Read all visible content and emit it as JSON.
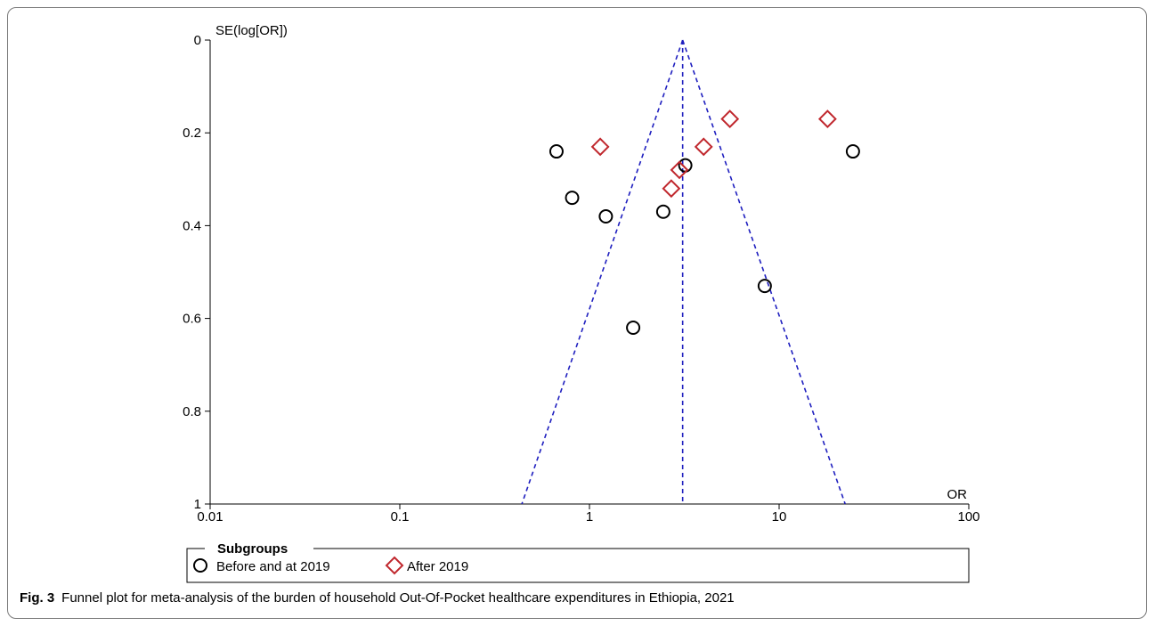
{
  "caption": {
    "label": "Fig. 3",
    "text": "Funnel plot for meta-analysis of the burden of household Out-Of-Pocket healthcare expenditures in Ethiopia, 2021"
  },
  "colors": {
    "funnel": "#1f1fbf",
    "before": "#000000",
    "after": "#c0272d"
  },
  "chart_data": {
    "type": "scatter",
    "xlabel": "OR",
    "ylabel": "SE(log[OR])",
    "x_scale": "log",
    "xlim": [
      0.01,
      100
    ],
    "ylim": [
      1,
      0
    ],
    "y_inverted": true,
    "x_ticks": [
      "0.01",
      "0.1",
      "1",
      "10",
      "100"
    ],
    "y_ticks": [
      "0",
      "0.2",
      "0.4",
      "0.6",
      "0.8",
      "1"
    ],
    "pooled_or": 3.1,
    "funnel_limits_at_se1": [
      0.44,
      22.3
    ],
    "series": [
      {
        "name": "Before and at 2019",
        "marker": "circle",
        "points": [
          {
            "x": 0.67,
            "y": 0.24
          },
          {
            "x": 0.81,
            "y": 0.34
          },
          {
            "x": 1.22,
            "y": 0.38
          },
          {
            "x": 1.7,
            "y": 0.62
          },
          {
            "x": 2.45,
            "y": 0.37
          },
          {
            "x": 3.2,
            "y": 0.27
          },
          {
            "x": 8.4,
            "y": 0.53
          },
          {
            "x": 24.5,
            "y": 0.24
          }
        ]
      },
      {
        "name": "After 2019",
        "marker": "diamond",
        "points": [
          {
            "x": 1.14,
            "y": 0.23
          },
          {
            "x": 2.7,
            "y": 0.32
          },
          {
            "x": 2.98,
            "y": 0.28
          },
          {
            "x": 4.0,
            "y": 0.23
          },
          {
            "x": 5.5,
            "y": 0.17
          },
          {
            "x": 18.0,
            "y": 0.17
          }
        ]
      }
    ],
    "legend": {
      "title": "Subgroups",
      "placement": "bottom"
    }
  }
}
